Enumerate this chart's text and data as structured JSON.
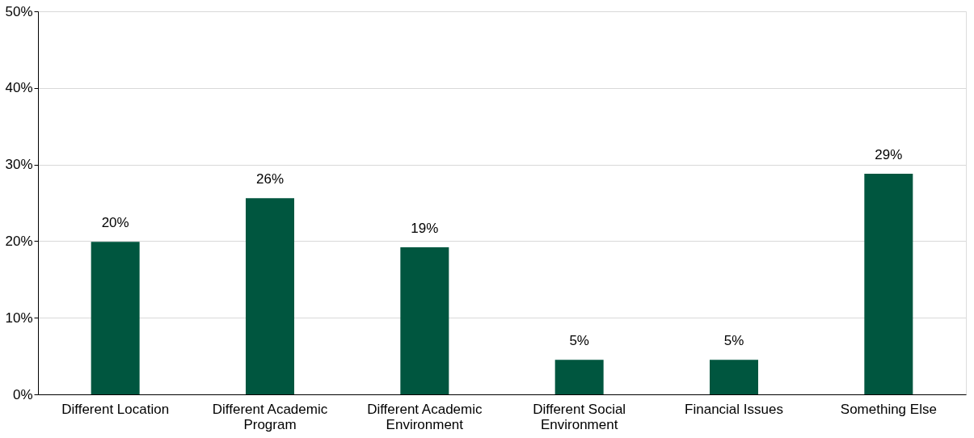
{
  "chart_data": {
    "type": "bar",
    "categories": [
      "Different Location",
      "Different Academic Program",
      "Different Academic Environment",
      "Different Social Environment",
      "Financial Issues",
      "Something Else"
    ],
    "values": [
      19.9,
      25.6,
      19.2,
      4.5,
      4.5,
      28.8
    ],
    "value_labels": [
      "20%",
      "26%",
      "19%",
      "5%",
      "5%",
      "29%"
    ],
    "color": "#00563f",
    "ylim": [
      0,
      50
    ],
    "yticks": [
      {
        "value": 0,
        "label": "0%"
      },
      {
        "value": 10,
        "label": "10%"
      },
      {
        "value": 20,
        "label": "20%"
      },
      {
        "value": 30,
        "label": "30%"
      },
      {
        "value": 40,
        "label": "40%"
      },
      {
        "value": 50,
        "label": "50%"
      }
    ],
    "grid": "y"
  }
}
